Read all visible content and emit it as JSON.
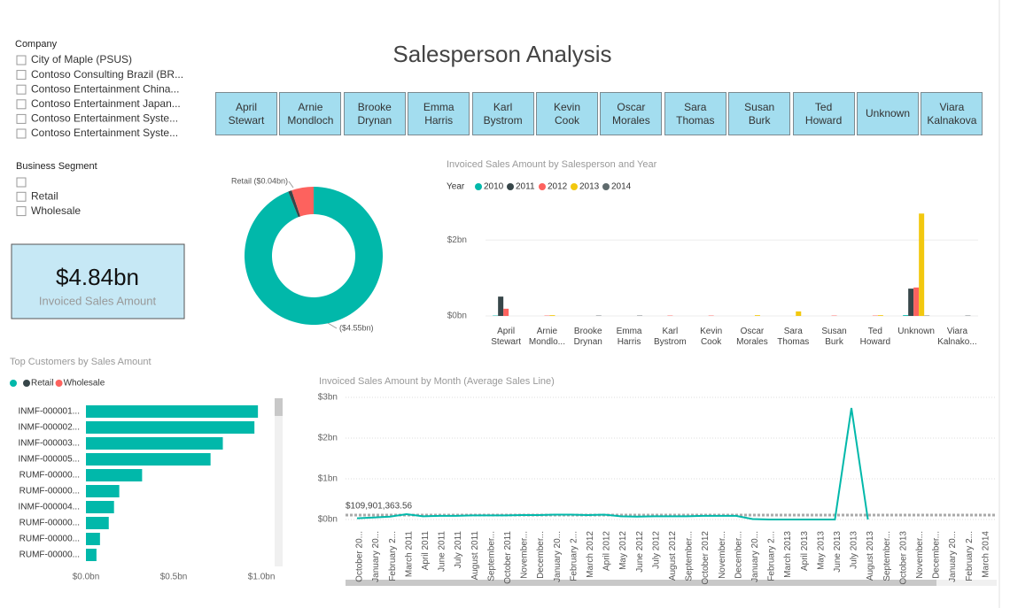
{
  "title": "Salesperson Analysis",
  "slicers": [
    {
      "title": "Company",
      "items": [
        "City of Maple (PSUS)",
        "Contoso Consulting Brazil (BR...",
        "Contoso Entertainment China...",
        "Contoso Entertainment Japan...",
        "Contoso Entertainment Syste...",
        "Contoso Entertainment Syste..."
      ]
    },
    {
      "title": "Business Segment",
      "items": [
        "Retail",
        "Wholesale"
      ]
    }
  ],
  "buttons": [
    [
      "April",
      "Stewart"
    ],
    [
      "Arnie",
      "Mondloch"
    ],
    [
      "Brooke",
      "Drynan"
    ],
    [
      "Emma",
      "Harris"
    ],
    [
      "Karl",
      "Bystrom"
    ],
    [
      "Kevin",
      "Cook"
    ],
    [
      "Oscar",
      "Morales"
    ],
    [
      "Sara",
      "Thomas"
    ],
    [
      "Susan",
      "Burk"
    ],
    [
      "Ted",
      "Howard"
    ],
    [
      "Unknown"
    ],
    [
      "Viara",
      "Kalnakova"
    ]
  ],
  "kpi": {
    "value": "$4.84bn",
    "label": "Invoiced Sales Amount"
  },
  "chart_data": [
    {
      "type": "pie",
      "categories": [
        null,
        "Retail",
        "Wholesale"
      ],
      "values": [
        4.55,
        0.04,
        0.25
      ],
      "value_labels": [
        "($4.55bn)",
        "Retail ($0.04bn)",
        null
      ],
      "colors": [
        "#01B8AA",
        "#374649",
        "#FD625E"
      ]
    },
    {
      "type": "bar",
      "title": "Invoiced Sales Amount by Salesperson and Year",
      "legend_title": "Year",
      "categories": [
        "April Stewart",
        "Arnie Mondlo...",
        "Brooke Drynan",
        "Emma Harris",
        "Karl Bystrom",
        "Kevin Cook",
        "Oscar Morales",
        "Sara Thomas",
        "Susan Burk",
        "Ted Howard",
        "Unknown",
        "Viara Kalnako..."
      ],
      "series": [
        {
          "name": "2010",
          "color": "#01B8AA",
          "values": [
            0.01,
            0,
            0,
            0,
            0,
            0,
            0,
            0,
            0,
            0,
            0.02,
            0
          ]
        },
        {
          "name": "2011",
          "color": "#374649",
          "values": [
            0.51,
            0,
            0,
            0,
            0,
            0,
            0,
            0,
            0,
            0,
            0.72,
            0
          ]
        },
        {
          "name": "2012",
          "color": "#FD625E",
          "values": [
            0.19,
            0.01,
            0,
            0,
            0.01,
            0.01,
            0,
            0,
            0.01,
            0.01,
            0.75,
            0
          ]
        },
        {
          "name": "2013",
          "color": "#F2C80F",
          "values": [
            0,
            0.02,
            0,
            0,
            0,
            0,
            0.02,
            0.12,
            0,
            0.02,
            2.7,
            0
          ]
        },
        {
          "name": "2014",
          "color": "#5F6B6D",
          "values": [
            0,
            0,
            0.01,
            0.01,
            0,
            0,
            0,
            0,
            0,
            0,
            0.01,
            0.01
          ]
        }
      ],
      "ylim": [
        0,
        2.8
      ],
      "yticks": [
        {
          "value": 0,
          "label": "$0bn"
        },
        {
          "value": 2,
          "label": "$2bn"
        }
      ],
      "grid": true
    },
    {
      "type": "hbar",
      "title": "Top Customers by Sales Amount",
      "legend": [
        {
          "color": "#01B8AA"
        },
        {
          "name": "Retail",
          "color": "#374649"
        },
        {
          "name": "Wholesale",
          "color": "#FD625E"
        }
      ],
      "categories": [
        "INMF-000001...",
        "INMF-000002...",
        "INMF-000003...",
        "INMF-000005...",
        "RUMF-00000...",
        "RUMF-00000...",
        "INMF-000004...",
        "RUMF-00000...",
        "RUMF-00000...",
        "RUMF-00000..."
      ],
      "values": [
        0.98,
        0.96,
        0.78,
        0.71,
        0.32,
        0.19,
        0.16,
        0.13,
        0.08,
        0.06
      ],
      "color": "#01B8AA",
      "xlim": [
        0,
        1.05
      ],
      "xticks": [
        {
          "value": 0,
          "label": "$0.0bn"
        },
        {
          "value": 0.5,
          "label": "$0.5bn"
        },
        {
          "value": 1,
          "label": "$1.0bn"
        }
      ]
    },
    {
      "type": "line",
      "title": "Invoiced Sales Amount by Month (Average Sales Line)",
      "categories": [
        "October 20...",
        "January 20...",
        "February 2...",
        "March 2011",
        "April 2011",
        "June 2011",
        "July 2011",
        "August 2011",
        "September...",
        "October 2011",
        "November...",
        "December...",
        "January 20...",
        "February 2...",
        "March 2012",
        "April 2012",
        "May 2012",
        "June 2012",
        "July 2012",
        "August 2012",
        "September...",
        "October 2012",
        "November...",
        "December...",
        "January 20...",
        "February 2...",
        "March 2013",
        "April 2013",
        "May 2013",
        "June 2013",
        "July 2013",
        "August 2013",
        "September...",
        "October 2013",
        "November...",
        "December...",
        "January 20...",
        "February 2...",
        "March 2014"
      ],
      "values": [
        0.03,
        0.05,
        0.07,
        0.13,
        0.08,
        0.09,
        0.09,
        0.1,
        0.1,
        0.1,
        0.11,
        0.11,
        0.12,
        0.12,
        0.11,
        0.12,
        0.08,
        0.07,
        0.08,
        0.08,
        0.08,
        0.09,
        0.09,
        0.09,
        0.01,
        0,
        0,
        0,
        0,
        0,
        2.74,
        0,
        null,
        null,
        null,
        null,
        null,
        null,
        null
      ],
      "color": "#01B8AA",
      "average": 0.10990136356,
      "average_label": "$109,901,363.56",
      "ylim": [
        0,
        3
      ],
      "yticks": [
        {
          "value": 0,
          "label": "$0bn"
        },
        {
          "value": 1,
          "label": "$1bn"
        },
        {
          "value": 2,
          "label": "$2bn"
        },
        {
          "value": 3,
          "label": "$3bn"
        }
      ],
      "grid": true
    }
  ]
}
